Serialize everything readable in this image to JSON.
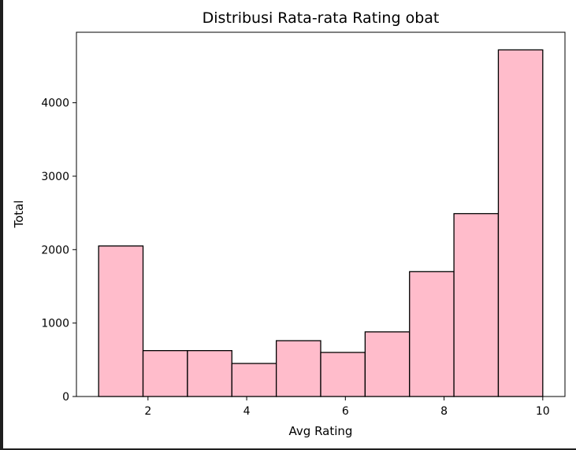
{
  "chart_data": {
    "type": "bar",
    "title": "Distribusi Rata-rata Rating obat",
    "xlabel": "Avg Rating",
    "ylabel": "Total",
    "bins": [
      {
        "x0": 1.0,
        "x1": 1.9,
        "value": 2050
      },
      {
        "x0": 1.9,
        "x1": 2.8,
        "value": 625
      },
      {
        "x0": 2.8,
        "x1": 3.7,
        "value": 625
      },
      {
        "x0": 3.7,
        "x1": 4.6,
        "value": 450
      },
      {
        "x0": 4.6,
        "x1": 5.5,
        "value": 760
      },
      {
        "x0": 5.5,
        "x1": 6.4,
        "value": 600
      },
      {
        "x0": 6.4,
        "x1": 7.3,
        "value": 880
      },
      {
        "x0": 7.3,
        "x1": 8.2,
        "value": 1700
      },
      {
        "x0": 8.2,
        "x1": 9.1,
        "value": 2490
      },
      {
        "x0": 9.1,
        "x1": 10.0,
        "value": 4720
      }
    ],
    "xlim": [
      0.55,
      10.45
    ],
    "ylim": [
      0,
      4960
    ],
    "xticks": [
      2,
      4,
      6,
      8,
      10
    ],
    "yticks": [
      0,
      1000,
      2000,
      3000,
      4000
    ],
    "bar_color": "#ffbccb",
    "edge_color": "#000000",
    "grid": false,
    "legend": "none"
  }
}
